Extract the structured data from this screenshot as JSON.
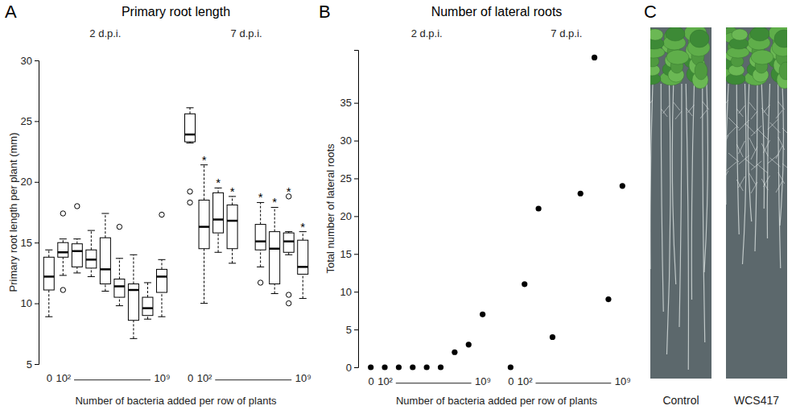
{
  "chart_data": [
    {
      "type": "box",
      "panel_label": "A",
      "title": "Primary root length",
      "x_label": "Number of bacteria added per row of plants",
      "y_label": "Primary root length per plant (mm)",
      "categories": [
        "0",
        "10²",
        null,
        null,
        null,
        null,
        null,
        null,
        "10⁹"
      ],
      "ylim": [
        5,
        30
      ],
      "yticks": [
        5,
        10,
        15,
        20,
        25,
        30
      ],
      "grid": false,
      "series": [
        {
          "name": "2 d.p.i.",
          "boxes": [
            {
              "low": 8.9,
              "q1": 11.1,
              "median": 12.2,
              "q3": 13.8,
              "high": 14.4,
              "outliers": []
            },
            {
              "low": 12.3,
              "q1": 13.8,
              "median": 14.2,
              "q3": 15.0,
              "high": 15.3,
              "outliers": [
                17.4,
                11.1
              ]
            },
            {
              "low": 12.5,
              "q1": 13.0,
              "median": 14.3,
              "q3": 14.9,
              "high": 15.3,
              "outliers": [
                18.0
              ]
            },
            {
              "low": 12.2,
              "q1": 12.9,
              "median": 13.6,
              "q3": 14.4,
              "high": 16.0,
              "outliers": []
            },
            {
              "low": 11.0,
              "q1": 11.6,
              "median": 12.8,
              "q3": 15.4,
              "high": 17.4,
              "outliers": []
            },
            {
              "low": 9.8,
              "q1": 10.5,
              "median": 11.4,
              "q3": 12.0,
              "high": 13.7,
              "outliers": [
                16.3
              ]
            },
            {
              "low": 7.1,
              "q1": 8.6,
              "median": 11.1,
              "q3": 11.6,
              "high": 14.0,
              "outliers": []
            },
            {
              "low": 8.7,
              "q1": 9.0,
              "median": 9.6,
              "q3": 10.5,
              "high": 11.7,
              "outliers": []
            },
            {
              "low": 8.9,
              "q1": 10.9,
              "median": 12.2,
              "q3": 12.8,
              "high": 13.6,
              "outliers": [
                17.3
              ]
            }
          ]
        },
        {
          "name": "7 d.p.i.",
          "boxes": [
            {
              "low": 23.2,
              "q1": 23.3,
              "median": 23.9,
              "q3": 25.6,
              "high": 26.1,
              "outliers": [
                19.2,
                18.3
              ]
            },
            {
              "low": 10.0,
              "q1": 14.5,
              "median": 16.3,
              "q3": 18.5,
              "high": 21.4,
              "outliers": []
            },
            {
              "low": 14.2,
              "q1": 15.8,
              "median": 16.9,
              "q3": 19.1,
              "high": 19.5,
              "outliers": []
            },
            {
              "low": 13.3,
              "q1": 14.5,
              "median": 16.8,
              "q3": 18.1,
              "high": 18.8,
              "outliers": []
            },
            null,
            {
              "low": 13.0,
              "q1": 14.4,
              "median": 15.1,
              "q3": 16.5,
              "high": 18.3,
              "outliers": [
                11.7
              ]
            },
            {
              "low": 10.8,
              "q1": 11.6,
              "median": 14.5,
              "q3": 15.9,
              "high": 17.9,
              "outliers": []
            },
            {
              "low": 14.0,
              "q1": 14.2,
              "median": 15.1,
              "q3": 15.8,
              "high": 15.9,
              "outliers": [
                18.8,
                10.7,
                10.0
              ]
            },
            {
              "low": 10.4,
              "q1": 12.4,
              "median": 13.0,
              "q3": 15.2,
              "high": 15.9,
              "outliers": []
            }
          ],
          "significance": [
            null,
            "*",
            "*",
            "*",
            null,
            "*",
            "*",
            "*",
            "*"
          ]
        }
      ]
    },
    {
      "type": "scatter",
      "panel_label": "B",
      "title": "Number of lateral roots",
      "x_label": "Number of bacteria added per row of plants",
      "y_label": "Total number of lateral roots",
      "categories": [
        "0",
        "10²",
        null,
        null,
        null,
        null,
        null,
        null,
        "10⁹"
      ],
      "ylim": [
        0,
        42
      ],
      "yticks": [
        0,
        5,
        10,
        15,
        20,
        25,
        30,
        35
      ],
      "grid": false,
      "series": [
        {
          "name": "2 d.p.i.",
          "values": [
            0,
            0,
            0,
            0,
            0,
            0,
            2,
            3,
            7
          ]
        },
        {
          "name": "7 d.p.i.",
          "values": [
            0,
            11,
            21,
            4,
            null,
            23,
            41,
            9,
            24
          ]
        }
      ]
    }
  ],
  "panel_c": {
    "panel_label": "C",
    "images": [
      {
        "label": "Control"
      },
      {
        "label": "WCS417"
      }
    ]
  }
}
